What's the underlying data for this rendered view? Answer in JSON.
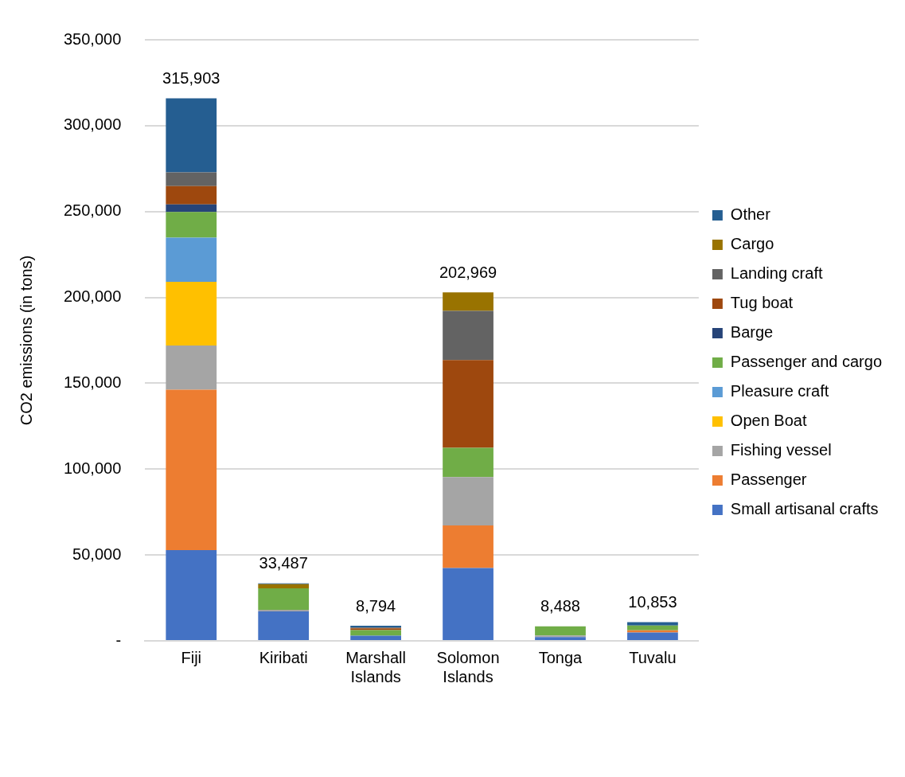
{
  "chart_data": {
    "type": "bar",
    "stacked": true,
    "ylabel": "CO2 emissions (in tons)",
    "categories": [
      "Fiji",
      "Kiribati",
      "Marshall Islands",
      "Solomon Islands",
      "Tonga",
      "Tuvalu"
    ],
    "series": [
      {
        "name": "Small artisanal crafts",
        "color": "#4472c4",
        "values": [
          52900,
          17100,
          3000,
          42400,
          2200,
          4900
        ]
      },
      {
        "name": "Passenger",
        "color": "#ed7d31",
        "values": [
          93400,
          0,
          0,
          24800,
          0,
          1200
        ]
      },
      {
        "name": "Fishing vessel",
        "color": "#a5a5a5",
        "values": [
          25700,
          1000,
          null,
          28200,
          900,
          0
        ]
      },
      {
        "name": "Open Boat",
        "color": "#ffc000",
        "values": [
          37100,
          0,
          0,
          0,
          0,
          0
        ]
      },
      {
        "name": "Pleasure craft",
        "color": "#5b9bd5",
        "values": [
          25700,
          0,
          0,
          0,
          0,
          0
        ]
      },
      {
        "name": "Passenger and cargo",
        "color": "#70ad47",
        "values": [
          15000,
          12500,
          3300,
          17000,
          5388,
          2800
        ]
      },
      {
        "name": "Barge",
        "color": "#264478",
        "values": [
          4400,
          0,
          0,
          0,
          0,
          0
        ]
      },
      {
        "name": "Tug boat",
        "color": "#9e480e",
        "values": [
          10600,
          0,
          1000,
          51100,
          0,
          0
        ]
      },
      {
        "name": "Landing craft",
        "color": "#636363",
        "values": [
          8000,
          0,
          500,
          28700,
          0,
          0
        ]
      },
      {
        "name": "Cargo",
        "color": "#997300",
        "values": [
          0,
          2400,
          0,
          10769,
          0,
          0
        ]
      },
      {
        "name": "Other",
        "color": "#255e91",
        "values": [
          43103,
          487,
          994,
          0,
          0,
          1953
        ]
      }
    ],
    "totals": [
      "315,903",
      "33,487",
      "8,794",
      "202,969",
      "8,488",
      "10,853"
    ],
    "ylim": [
      0,
      350000
    ],
    "yticks": [
      {
        "value": 0,
        "label": "-"
      },
      {
        "value": 50000,
        "label": "50,000"
      },
      {
        "value": 100000,
        "label": "100,000"
      },
      {
        "value": 150000,
        "label": "150,000"
      },
      {
        "value": 200000,
        "label": "200,000"
      },
      {
        "value": 250000,
        "label": "250,000"
      },
      {
        "value": 300000,
        "label": "300,000"
      },
      {
        "value": 350000,
        "label": "350,000"
      }
    ],
    "grid": "y",
    "legend": "right"
  }
}
